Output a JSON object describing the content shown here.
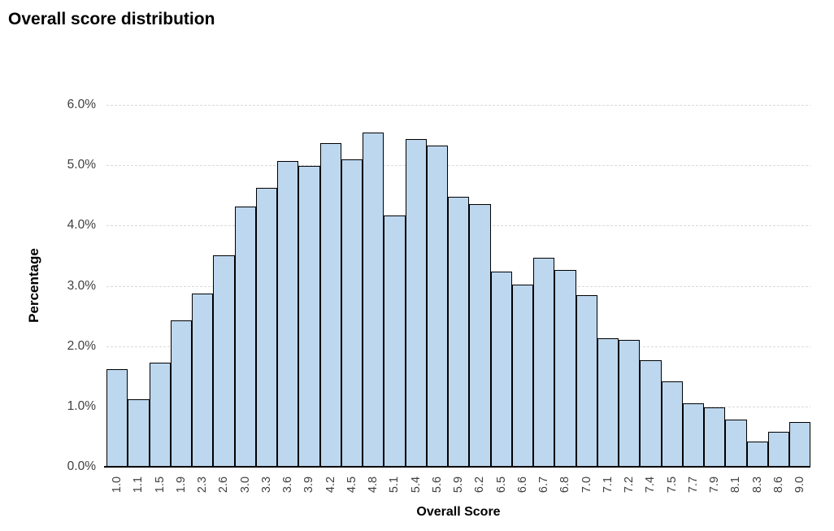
{
  "title": "Overall score distribution",
  "chart_data": {
    "type": "bar",
    "title": "Overall score distribution",
    "xlabel": "Overall Score",
    "ylabel": "Percentage",
    "categories": [
      "1.0",
      "1.1",
      "1.5",
      "1.9",
      "2.3",
      "2.6",
      "3.0",
      "3.3",
      "3.6",
      "3.9",
      "4.2",
      "4.5",
      "4.8",
      "5.1",
      "5.4",
      "5.6",
      "5.9",
      "6.2",
      "6.5",
      "6.6",
      "6.7",
      "6.8",
      "7.0",
      "7.1",
      "7.2",
      "7.4",
      "7.5",
      "7.7",
      "7.9",
      "8.1",
      "8.3",
      "8.6",
      "9.0"
    ],
    "values": [
      1.62,
      1.12,
      1.73,
      2.43,
      2.87,
      3.5,
      4.31,
      4.63,
      5.07,
      4.99,
      5.36,
      5.1,
      5.54,
      4.17,
      5.44,
      5.33,
      4.48,
      4.35,
      3.23,
      3.02,
      3.46,
      3.26,
      2.85,
      2.13,
      2.1,
      1.77,
      1.42,
      1.05,
      0.98,
      0.78,
      0.42,
      0.58,
      0.74
    ],
    "values_unit": "%",
    "ylim": [
      0,
      6
    ],
    "ytick_labels": [
      "0.0%",
      "1.0%",
      "2.0%",
      "3.0%",
      "4.0%",
      "5.0%",
      "6.0%"
    ],
    "grid": "horizontal-dotted",
    "legend": "none",
    "bar_fill_color": "#bdd7ee",
    "bar_border_color": "#000000",
    "gridline_color": "#d9d9d9",
    "tick_text_color": "#404040",
    "axis_title_color": "#000000"
  }
}
